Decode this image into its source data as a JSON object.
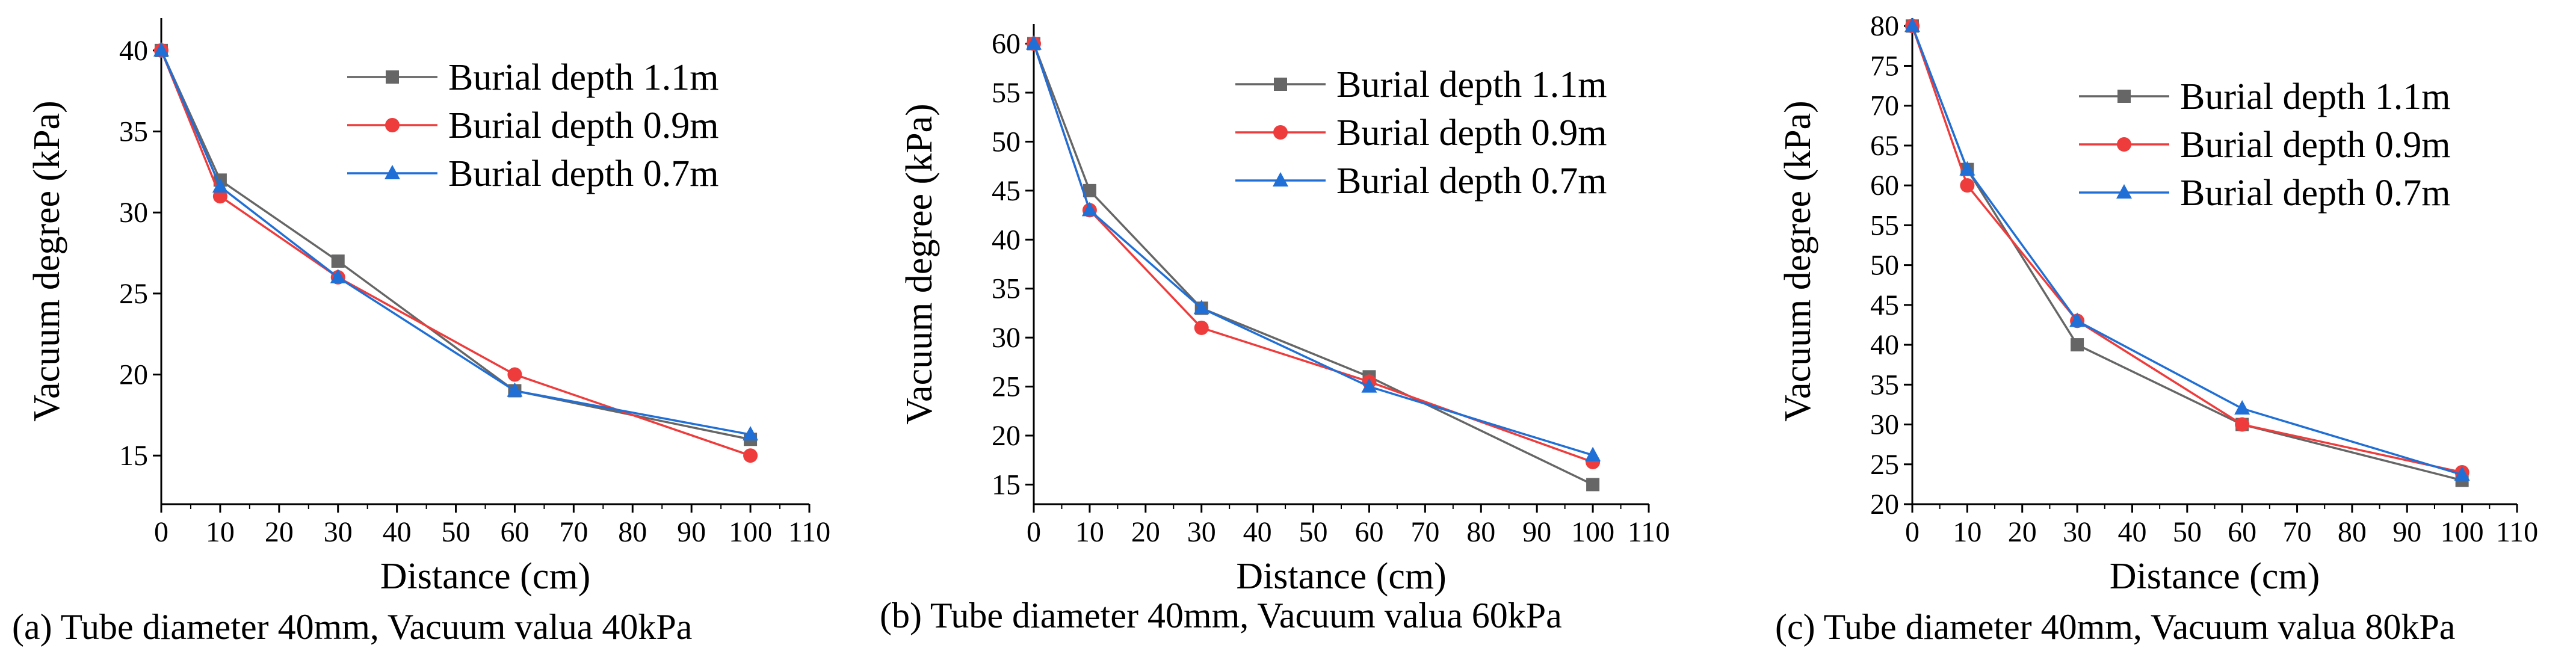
{
  "chart_data": [
    {
      "type": "line",
      "caption": "(a)  Tube diameter 40mm, Vacuum valua 40kPa",
      "xlabel": "Distance (cm)",
      "ylabel": "Vacuum degree (kPa)",
      "xlim": [
        0,
        110
      ],
      "ylim": [
        12,
        42
      ],
      "xticks": [
        0,
        10,
        20,
        30,
        40,
        50,
        60,
        70,
        80,
        90,
        100,
        110
      ],
      "yticks": [
        15,
        20,
        25,
        30,
        35,
        40
      ],
      "legend_position": "top-right",
      "series": [
        {
          "name": "Burial depth 1.1m",
          "color": "#666666",
          "marker": "square",
          "x": [
            0,
            10,
            30,
            60,
            100
          ],
          "y": [
            40,
            32,
            27,
            19,
            16
          ]
        },
        {
          "name": "Burial depth 0.9m",
          "color": "#ee3b3b",
          "marker": "circle",
          "x": [
            0,
            10,
            30,
            60,
            100
          ],
          "y": [
            40,
            31,
            26,
            20,
            15
          ]
        },
        {
          "name": "Burial depth 0.7m",
          "color": "#1f6fd6",
          "marker": "triangle",
          "x": [
            0,
            10,
            30,
            60,
            100
          ],
          "y": [
            40,
            31.6,
            26,
            19,
            16.3
          ]
        }
      ]
    },
    {
      "type": "line",
      "caption": "(b)  Tube diameter 40mm, Vacuum valua 60kPa",
      "xlabel": "Distance (cm)",
      "ylabel": "Vacuum degree (kPa)",
      "xlim": [
        0,
        110
      ],
      "ylim": [
        13,
        62
      ],
      "xticks": [
        0,
        10,
        20,
        30,
        40,
        50,
        60,
        70,
        80,
        90,
        100,
        110
      ],
      "yticks": [
        15,
        20,
        25,
        30,
        35,
        40,
        45,
        50,
        55,
        60
      ],
      "legend_position": "top-right",
      "series": [
        {
          "name": "Burial depth 1.1m",
          "color": "#666666",
          "marker": "square",
          "x": [
            0,
            10,
            30,
            60,
            100
          ],
          "y": [
            60,
            45,
            33,
            26,
            15
          ]
        },
        {
          "name": "Burial depth 0.9m",
          "color": "#ee3b3b",
          "marker": "circle",
          "x": [
            0,
            10,
            30,
            60,
            100
          ],
          "y": [
            60,
            43,
            31,
            25.5,
            17.3
          ]
        },
        {
          "name": "Burial depth 0.7m",
          "color": "#1f6fd6",
          "marker": "triangle",
          "x": [
            0,
            10,
            30,
            60,
            100
          ],
          "y": [
            60,
            43,
            33,
            25,
            18
          ]
        }
      ]
    },
    {
      "type": "line",
      "caption": "(c)  Tube diameter 40mm, Vacuum valua 80kPa",
      "xlabel": "Distance (cm)",
      "ylabel": "Vacuum degree (kPa)",
      "xlim": [
        0,
        110
      ],
      "ylim": [
        20,
        81
      ],
      "xticks": [
        0,
        10,
        20,
        30,
        40,
        50,
        60,
        70,
        80,
        90,
        100,
        110
      ],
      "yticks": [
        20,
        25,
        30,
        35,
        40,
        45,
        50,
        55,
        60,
        65,
        70,
        75,
        80
      ],
      "legend_position": "top-right",
      "series": [
        {
          "name": "Burial depth 1.1m",
          "color": "#666666",
          "marker": "square",
          "x": [
            0,
            10,
            30,
            60,
            100
          ],
          "y": [
            80,
            62,
            40,
            30,
            23
          ]
        },
        {
          "name": "Burial depth 0.9m",
          "color": "#ee3b3b",
          "marker": "circle",
          "x": [
            0,
            10,
            30,
            60,
            100
          ],
          "y": [
            80,
            60,
            43,
            30,
            24
          ]
        },
        {
          "name": "Burial depth 0.7m",
          "color": "#1f6fd6",
          "marker": "triangle",
          "x": [
            0,
            10,
            30,
            60,
            100
          ],
          "y": [
            80,
            62,
            43,
            32,
            23.7
          ]
        }
      ]
    }
  ]
}
